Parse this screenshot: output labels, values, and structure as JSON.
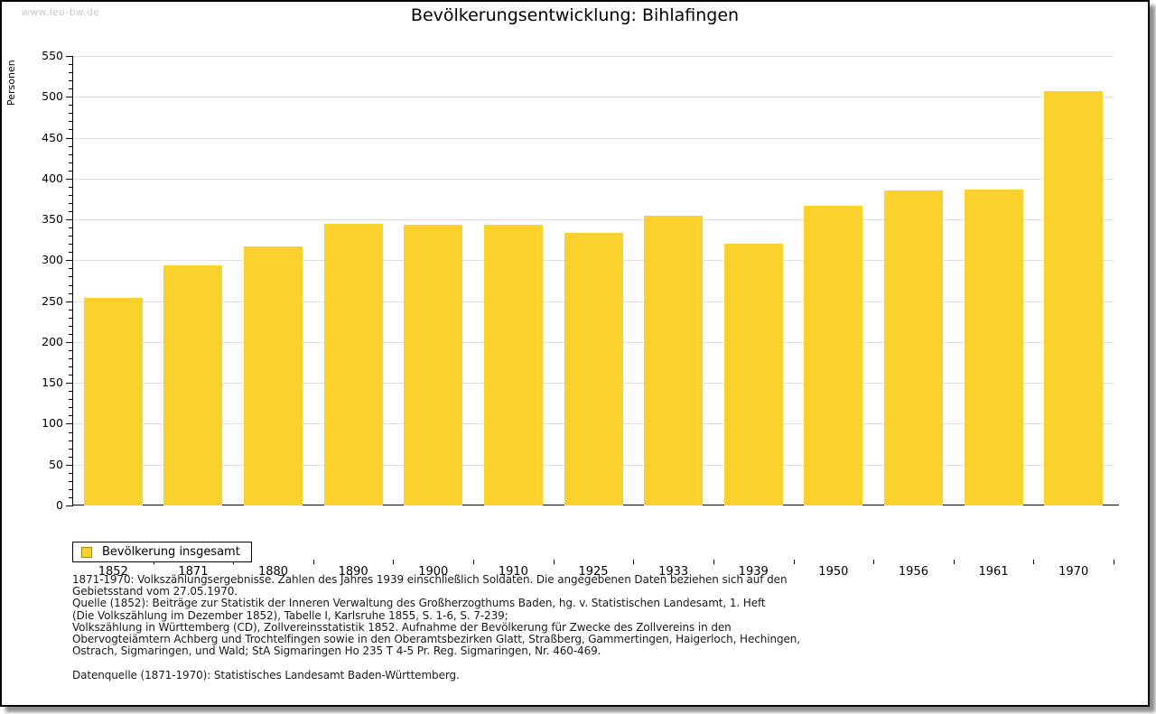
{
  "page": {
    "watermark": "www.leo-bw.de",
    "title": "Bevölkerungsentwicklung:  Bihlafingen"
  },
  "chart_data": {
    "type": "bar",
    "title": "Bevölkerungsentwicklung: Bihlafingen",
    "ylabel": "Personen",
    "xlabel": "",
    "categories": [
      "1852",
      "1871",
      "1880",
      "1890",
      "1900",
      "1910",
      "1925",
      "1933",
      "1939",
      "1950",
      "1956",
      "1961",
      "1970"
    ],
    "values": [
      254,
      294,
      317,
      345,
      344,
      343,
      334,
      354,
      320,
      367,
      385,
      387,
      507
    ],
    "ylim": [
      0,
      550
    ],
    "ytick_step": 50,
    "yminor_step": 10,
    "grid": "horizontal-major-gridlines",
    "legend_position": "bottom-left",
    "series_name": "Bevölkerung insgesamt"
  },
  "legend": {
    "label": "Bevölkerung insgesamt"
  },
  "colors": {
    "bar": "#fcd12b",
    "swatch_border": "#a38b00",
    "grid": "#e0e0e0",
    "axis": "#000000"
  },
  "footer": {
    "lines": [
      "1871-1970: Volkszählungsergebnisse. Zahlen des Jahres 1939 einschließlich Soldaten. Die angegebenen Daten beziehen sich auf den",
      "Gebietsstand vom 27.05.1970.",
      "Quelle (1852): Beiträge zur Statistik der Inneren Verwaltung des Großherzogthums Baden, hg. v. Statistischen Landesamt, 1. Heft",
      "(Die Volkszählung im Dezember 1852), Tabelle I, Karlsruhe 1855, S. 1-6, S. 7-239;",
      "Volkszählung in Württemberg (CD), Zollvereinsstatistik 1852. Aufnahme der Bevölkerung für Zwecke des Zollvereins in den",
      "Obervogteiämtern Achberg und Trochtelfingen sowie in den Oberamtsbezirken Glatt, Straßberg, Gammertingen, Haigerloch, Hechingen,",
      "Ostrach, Sigmaringen, und Wald; StA Sigmaringen Ho 235 T 4-5 Pr. Reg. Sigmaringen, Nr. 460-469.",
      "",
      "Datenquelle (1871-1970): Statistisches Landesamt Baden-Württemberg."
    ]
  }
}
